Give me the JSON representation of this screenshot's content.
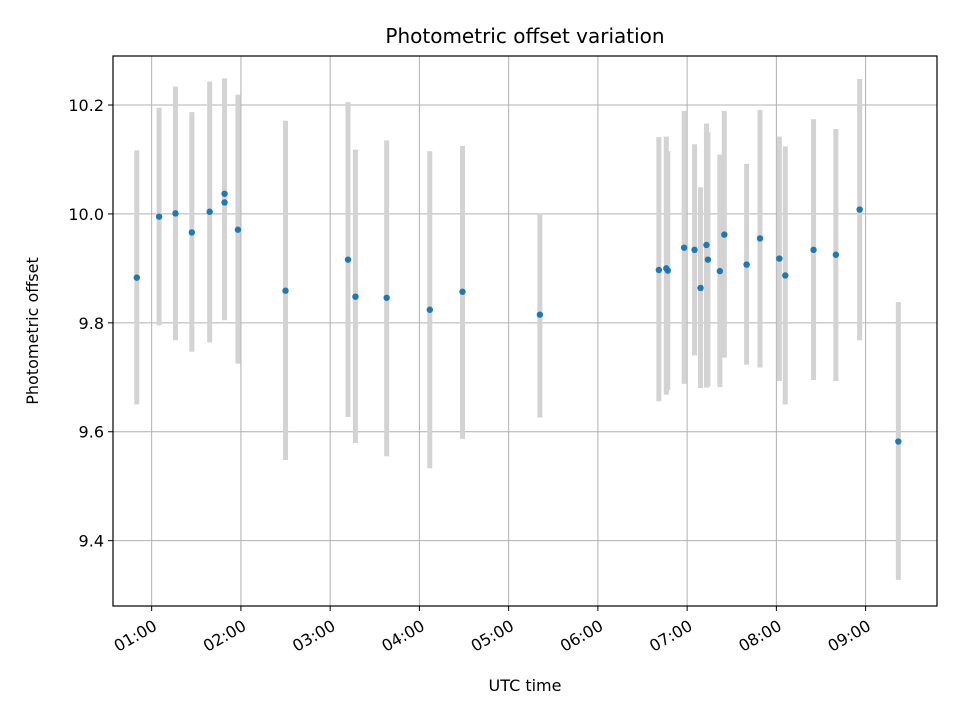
{
  "chart_data": {
    "type": "scatter",
    "title": "Photometric offset variation",
    "xlabel": "UTC time",
    "ylabel": "Photometric offset",
    "x_tick_labels": [
      "01:00",
      "02:00",
      "03:00",
      "04:00",
      "05:00",
      "06:00",
      "07:00",
      "08:00",
      "09:00"
    ],
    "y_ticks": [
      9.4,
      9.6,
      9.8,
      10.0,
      10.2
    ],
    "y_tick_labels": [
      "9.4",
      "9.6",
      "9.8",
      "10.0",
      "10.2"
    ],
    "xlim": [
      "00:34",
      "09:48"
    ],
    "ylim": [
      9.28,
      10.29
    ],
    "grid": true,
    "colors": {
      "point": "#1f77b4",
      "errorbar": "#d3d3d3",
      "grid": "#b0b0b0"
    },
    "points": [
      {
        "x": "00:50",
        "y": 9.883,
        "lo": 9.65,
        "hi": 10.117
      },
      {
        "x": "01:05",
        "y": 9.995,
        "lo": 9.795,
        "hi": 10.195
      },
      {
        "x": "01:16",
        "y": 10.001,
        "lo": 9.768,
        "hi": 10.234
      },
      {
        "x": "01:27",
        "y": 9.966,
        "lo": 9.747,
        "hi": 10.187
      },
      {
        "x": "01:39",
        "y": 10.004,
        "lo": 9.764,
        "hi": 10.243
      },
      {
        "x": "01:49",
        "y": 10.037,
        "lo": 9.805,
        "hi": 10.249
      },
      {
        "x": "01:49",
        "y": 10.021,
        "lo": 9.805,
        "hi": 10.249
      },
      {
        "x": "01:58",
        "y": 9.971,
        "lo": 9.725,
        "hi": 10.219
      },
      {
        "x": "02:30",
        "y": 9.859,
        "lo": 9.548,
        "hi": 10.171
      },
      {
        "x": "03:12",
        "y": 9.916,
        "lo": 9.627,
        "hi": 10.205
      },
      {
        "x": "03:17",
        "y": 9.848,
        "lo": 9.579,
        "hi": 10.118
      },
      {
        "x": "03:38",
        "y": 9.846,
        "lo": 9.555,
        "hi": 10.135
      },
      {
        "x": "04:07",
        "y": 9.824,
        "lo": 9.533,
        "hi": 10.115
      },
      {
        "x": "04:29",
        "y": 9.857,
        "lo": 9.587,
        "hi": 10.125
      },
      {
        "x": "05:21",
        "y": 9.815,
        "lo": 9.626,
        "hi": 10.001
      },
      {
        "x": "06:41",
        "y": 9.897,
        "lo": 9.656,
        "hi": 10.141
      },
      {
        "x": "06:46",
        "y": 9.9,
        "lo": 9.668,
        "hi": 10.142
      },
      {
        "x": "06:47",
        "y": 9.896,
        "lo": 9.677,
        "hi": 10.115
      },
      {
        "x": "06:58",
        "y": 9.938,
        "lo": 9.688,
        "hi": 10.189
      },
      {
        "x": "07:05",
        "y": 9.934,
        "lo": 9.74,
        "hi": 10.128
      },
      {
        "x": "07:09",
        "y": 9.864,
        "lo": 9.68,
        "hi": 10.049
      },
      {
        "x": "07:13",
        "y": 9.943,
        "lo": 9.681,
        "hi": 10.166
      },
      {
        "x": "07:14",
        "y": 9.916,
        "lo": 9.683,
        "hi": 10.15
      },
      {
        "x": "07:22",
        "y": 9.895,
        "lo": 9.682,
        "hi": 10.109
      },
      {
        "x": "07:25",
        "y": 9.962,
        "lo": 9.736,
        "hi": 10.189
      },
      {
        "x": "07:40",
        "y": 9.907,
        "lo": 9.723,
        "hi": 10.092
      },
      {
        "x": "07:49",
        "y": 9.955,
        "lo": 9.718,
        "hi": 10.191
      },
      {
        "x": "08:02",
        "y": 9.918,
        "lo": 9.693,
        "hi": 10.142
      },
      {
        "x": "08:06",
        "y": 9.887,
        "lo": 9.65,
        "hi": 10.124
      },
      {
        "x": "08:25",
        "y": 9.934,
        "lo": 9.695,
        "hi": 10.174
      },
      {
        "x": "08:40",
        "y": 9.925,
        "lo": 9.693,
        "hi": 10.156
      },
      {
        "x": "08:56",
        "y": 10.008,
        "lo": 9.768,
        "hi": 10.248
      },
      {
        "x": "09:22",
        "y": 9.582,
        "lo": 9.328,
        "hi": 9.838
      }
    ]
  }
}
